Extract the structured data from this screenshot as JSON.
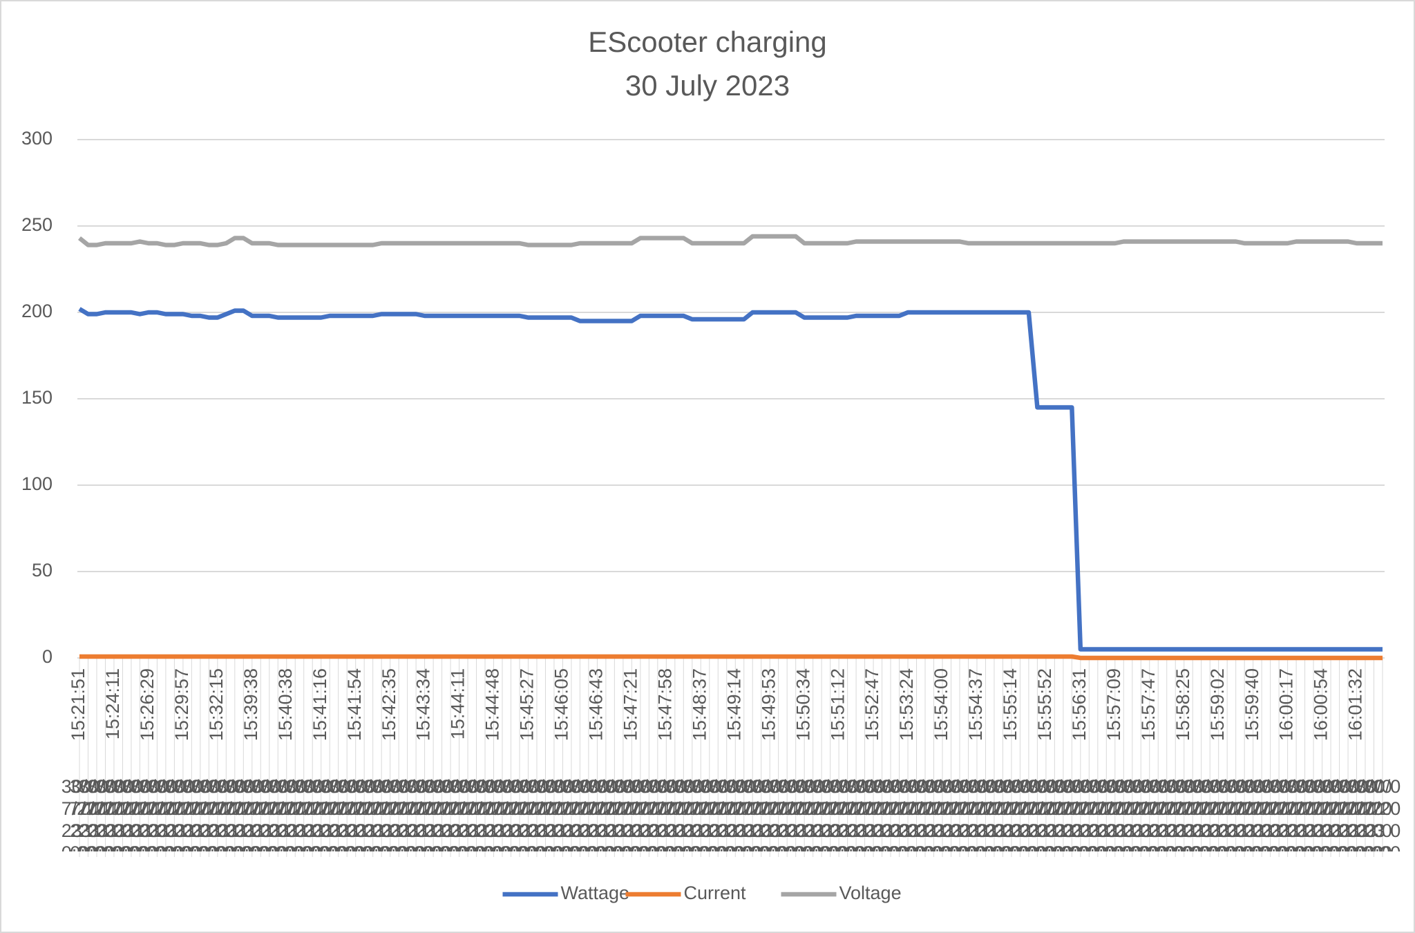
{
  "chart_data": {
    "type": "line",
    "title": "EScooter charging",
    "subtitle": "30 July 2023",
    "categories": [
      "15:21:51",
      null,
      null,
      null,
      "15:24:11",
      null,
      null,
      null,
      "15:26:29",
      null,
      null,
      null,
      "15:29:57",
      null,
      null,
      null,
      "15:32:15",
      null,
      null,
      null,
      "15:39:38",
      null,
      null,
      null,
      "15:40:38",
      null,
      null,
      null,
      "15:41:16",
      null,
      null,
      null,
      "15:41:54",
      null,
      null,
      null,
      "15:42:35",
      null,
      null,
      null,
      "15:43:34",
      null,
      null,
      null,
      "15:44:11",
      null,
      null,
      null,
      "15:44:48",
      null,
      null,
      null,
      "15:45:27",
      null,
      null,
      null,
      "15:46:05",
      null,
      null,
      null,
      "15:46:43",
      null,
      null,
      null,
      "15:47:21",
      null,
      null,
      null,
      "15:47:58",
      null,
      null,
      null,
      "15:48:37",
      null,
      null,
      null,
      "15:49:14",
      null,
      null,
      null,
      "15:49:53",
      null,
      null,
      null,
      "15:50:34",
      null,
      null,
      null,
      "15:51:12",
      null,
      null,
      null,
      "15:52:47",
      null,
      null,
      null,
      "15:53:24",
      null,
      null,
      null,
      "15:54:00",
      null,
      null,
      null,
      "15:54:37",
      null,
      null,
      null,
      "15:55:14",
      null,
      null,
      null,
      "15:55:52",
      null,
      null,
      null,
      "15:56:31",
      null,
      null,
      null,
      "15:57:09",
      null,
      null,
      null,
      "15:57:47",
      null,
      null,
      null,
      "15:58:25",
      null,
      null,
      null,
      "15:59:02",
      null,
      null,
      null,
      "15:59:40",
      null,
      null,
      null,
      "16:00:17",
      null,
      null,
      null,
      "16:00:54",
      null,
      null,
      null,
      "16:01:32",
      null,
      null,
      null
    ],
    "category_date": "30/07/2023 00:00",
    "series": [
      {
        "name": "Wattage",
        "color": "#4472c4",
        "values": [
          202,
          199,
          199,
          200,
          200,
          200,
          200,
          199,
          200,
          200,
          199,
          199,
          199,
          198,
          198,
          197,
          197,
          199,
          201,
          201,
          198,
          198,
          198,
          197,
          197,
          197,
          197,
          197,
          197,
          198,
          198,
          198,
          198,
          198,
          198,
          199,
          199,
          199,
          199,
          199,
          198,
          198,
          198,
          198,
          198,
          198,
          198,
          198,
          198,
          198,
          198,
          198,
          197,
          197,
          197,
          197,
          197,
          197,
          195,
          195,
          195,
          195,
          195,
          195,
          195,
          198,
          198,
          198,
          198,
          198,
          198,
          196,
          196,
          196,
          196,
          196,
          196,
          196,
          200,
          200,
          200,
          200,
          200,
          200,
          197,
          197,
          197,
          197,
          197,
          197,
          198,
          198,
          198,
          198,
          198,
          198,
          200,
          200,
          200,
          200,
          200,
          200,
          200,
          200,
          200,
          200,
          200,
          200,
          200,
          200,
          200,
          145,
          145,
          145,
          145,
          145,
          5,
          5,
          5,
          5,
          5,
          5,
          5,
          5,
          5,
          5,
          5,
          5,
          5,
          5,
          5,
          5,
          5,
          5,
          5,
          5,
          5,
          5,
          5,
          5,
          5,
          5,
          5,
          5,
          5,
          5,
          5,
          5,
          5,
          5,
          5,
          5
        ]
      },
      {
        "name": "Current",
        "color": "#ed7d31",
        "values": [
          0.8,
          0.8,
          0.8,
          0.8,
          0.8,
          0.8,
          0.8,
          0.8,
          0.8,
          0.8,
          0.8,
          0.8,
          0.8,
          0.8,
          0.8,
          0.8,
          0.8,
          0.8,
          0.8,
          0.8,
          0.8,
          0.8,
          0.8,
          0.8,
          0.8,
          0.8,
          0.8,
          0.8,
          0.8,
          0.8,
          0.8,
          0.8,
          0.8,
          0.8,
          0.8,
          0.8,
          0.8,
          0.8,
          0.8,
          0.8,
          0.8,
          0.8,
          0.8,
          0.8,
          0.8,
          0.8,
          0.8,
          0.8,
          0.8,
          0.8,
          0.8,
          0.8,
          0.8,
          0.8,
          0.8,
          0.8,
          0.8,
          0.8,
          0.8,
          0.8,
          0.8,
          0.8,
          0.8,
          0.8,
          0.8,
          0.8,
          0.8,
          0.8,
          0.8,
          0.8,
          0.8,
          0.8,
          0.8,
          0.8,
          0.8,
          0.8,
          0.8,
          0.8,
          0.8,
          0.8,
          0.8,
          0.8,
          0.8,
          0.8,
          0.8,
          0.8,
          0.8,
          0.8,
          0.8,
          0.8,
          0.8,
          0.8,
          0.8,
          0.8,
          0.8,
          0.8,
          0.8,
          0.8,
          0.8,
          0.8,
          0.8,
          0.8,
          0.8,
          0.8,
          0.8,
          0.8,
          0.8,
          0.8,
          0.8,
          0.8,
          0.8,
          0.8,
          0.8,
          0.8,
          0.8,
          0.8,
          0.02,
          0.02,
          0.02,
          0.02,
          0.02,
          0.02,
          0.02,
          0.02,
          0.02,
          0.02,
          0.02,
          0.02,
          0.02,
          0.02,
          0.02,
          0.02,
          0.02,
          0.02,
          0.02,
          0.02,
          0.02,
          0.02,
          0.02,
          0.02,
          0.02,
          0.02,
          0.02,
          0.02,
          0.02,
          0.02,
          0.02,
          0.02,
          0.02,
          0.02,
          0.02,
          0.02
        ]
      },
      {
        "name": "Voltage",
        "color": "#a5a5a5",
        "values": [
          243,
          239,
          239,
          240,
          240,
          240,
          240,
          241,
          240,
          240,
          239,
          239,
          240,
          240,
          240,
          239,
          239,
          240,
          243,
          243,
          240,
          240,
          240,
          239,
          239,
          239,
          239,
          239,
          239,
          239,
          239,
          239,
          239,
          239,
          239,
          240,
          240,
          240,
          240,
          240,
          240,
          240,
          240,
          240,
          240,
          240,
          240,
          240,
          240,
          240,
          240,
          240,
          239,
          239,
          239,
          239,
          239,
          239,
          240,
          240,
          240,
          240,
          240,
          240,
          240,
          243,
          243,
          243,
          243,
          243,
          243,
          240,
          240,
          240,
          240,
          240,
          240,
          240,
          244,
          244,
          244,
          244,
          244,
          244,
          240,
          240,
          240,
          240,
          240,
          240,
          241,
          241,
          241,
          241,
          241,
          241,
          241,
          241,
          241,
          241,
          241,
          241,
          241,
          240,
          240,
          240,
          240,
          240,
          240,
          240,
          240,
          240,
          240,
          240,
          240,
          240,
          240,
          240,
          240,
          240,
          240,
          241,
          241,
          241,
          241,
          241,
          241,
          241,
          241,
          241,
          241,
          241,
          241,
          241,
          241,
          240,
          240,
          240,
          240,
          240,
          240,
          241,
          241,
          241,
          241,
          241,
          241,
          241,
          240,
          240,
          240,
          240
        ]
      }
    ],
    "ylim": [
      0,
      300
    ],
    "yticks": [
      0,
      50,
      100,
      150,
      200,
      250,
      300
    ],
    "grid": true,
    "legend": "bottom"
  }
}
